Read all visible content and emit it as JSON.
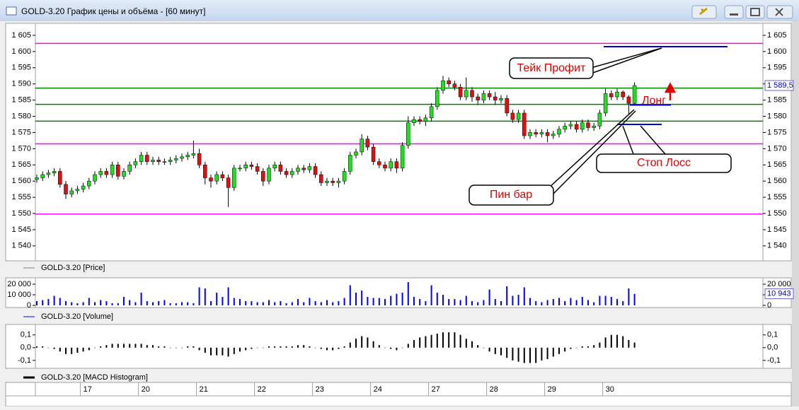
{
  "window": {
    "title": "GOLD-3.20 График цены и объёма - [60 минут]"
  },
  "chart_data": [
    {
      "type": "candlestick",
      "name": "GOLD-3.20 [Price]",
      "legend_color": "#808080",
      "up_color": "#22dd22",
      "down_color": "#dd1111",
      "categories": [
        null,
        null,
        null,
        null,
        null,
        null,
        null,
        null,
        "17",
        null,
        null,
        null,
        null,
        null,
        null,
        null,
        null,
        null,
        "20",
        null,
        null,
        null,
        null,
        null,
        null,
        null,
        null,
        null,
        "21",
        null,
        null,
        null,
        null,
        null,
        null,
        null,
        null,
        null,
        "22",
        null,
        null,
        null,
        null,
        null,
        null,
        null,
        null,
        null,
        "23",
        null,
        null,
        null,
        null,
        null,
        null,
        null,
        null,
        null,
        "24",
        null,
        null,
        null,
        null,
        null,
        null,
        null,
        null,
        null,
        "27",
        null,
        null,
        null,
        null,
        null,
        null,
        null,
        null,
        null,
        "28",
        null,
        null,
        null,
        null,
        null,
        null,
        null,
        null,
        null,
        "29",
        null,
        null,
        null,
        null,
        null,
        null,
        null,
        null,
        null,
        "30",
        null,
        null,
        null,
        null,
        null
      ],
      "open": [
        1560.5,
        1561,
        1562,
        1562.5,
        1563,
        1559,
        1556,
        1557,
        1557.5,
        1558.5,
        1560,
        1562,
        1563,
        1562,
        1565,
        1561.5,
        1563,
        1565,
        1566,
        1568,
        1566,
        1566.5,
        1566,
        1566,
        1566.5,
        1567,
        1567.5,
        1568,
        1568.5,
        1565,
        1561,
        1560,
        1562,
        1561,
        1558,
        1564,
        1564,
        1565,
        1564.5,
        1563,
        1560,
        1564,
        1565,
        1563,
        1562,
        1563,
        1564,
        1563.5,
        1564.5,
        1562,
        1559.5,
        1560,
        1559.5,
        1560,
        1563,
        1568,
        1569,
        1573,
        1570.5,
        1566,
        1565,
        1564,
        1566,
        1564,
        1571,
        1578,
        1579,
        1578.5,
        1579.5,
        1583,
        1588,
        1591,
        1590,
        1589,
        1586,
        1588,
        1586,
        1585,
        1587,
        1586,
        1585,
        1585.5,
        1581,
        1579,
        1581,
        1574,
        1575,
        1574.5,
        1575,
        1574,
        1574.5,
        1576,
        1577,
        1577.5,
        1576,
        1578,
        1576.5,
        1577,
        1581,
        1587,
        1586,
        1587.5,
        1586,
        1584
      ],
      "high": [
        1562,
        1563,
        1563.5,
        1564,
        1564,
        1560,
        1558,
        1558.5,
        1559.5,
        1561,
        1563,
        1564,
        1564,
        1566,
        1566,
        1564,
        1566,
        1567,
        1569,
        1569,
        1567.5,
        1567.5,
        1567,
        1567.5,
        1568,
        1568.5,
        1569,
        1572.5,
        1570,
        1566,
        1562,
        1563,
        1563,
        1562,
        1565,
        1565,
        1566,
        1566,
        1565.5,
        1564,
        1565,
        1566,
        1566,
        1564,
        1564,
        1565,
        1565,
        1565.5,
        1565.5,
        1563,
        1561,
        1561,
        1561,
        1564,
        1569,
        1570,
        1574.5,
        1574,
        1571.5,
        1567,
        1566,
        1567,
        1567,
        1572,
        1580,
        1580,
        1580,
        1580.5,
        1584,
        1589,
        1592.5,
        1592,
        1591,
        1590,
        1592,
        1589,
        1587,
        1588,
        1588,
        1587.5,
        1586.5,
        1586.5,
        1582,
        1582,
        1582,
        1576,
        1576,
        1576,
        1576,
        1575.5,
        1577,
        1578,
        1578.5,
        1578.5,
        1579,
        1579,
        1578,
        1582,
        1588.5,
        1588,
        1588.5,
        1588,
        1586.5,
        1590.5
      ],
      "low": [
        1559.5,
        1560,
        1561,
        1561.5,
        1558,
        1554.5,
        1555,
        1556,
        1556.5,
        1557.5,
        1559,
        1561,
        1561,
        1561,
        1560.5,
        1560.5,
        1562,
        1564,
        1565,
        1565,
        1565,
        1565,
        1565,
        1565,
        1565.5,
        1566,
        1566.5,
        1567,
        1564,
        1559,
        1558,
        1559,
        1560,
        1552,
        1557,
        1563,
        1563,
        1563.5,
        1562,
        1558.5,
        1559,
        1563,
        1562,
        1561,
        1561,
        1562,
        1562.5,
        1562.5,
        1561,
        1558.5,
        1558.5,
        1558.5,
        1558,
        1559,
        1562,
        1567,
        1568,
        1569.5,
        1565,
        1564,
        1563,
        1563,
        1562.5,
        1563,
        1570,
        1577,
        1577.5,
        1577,
        1578.5,
        1582,
        1587,
        1589,
        1588,
        1585,
        1585,
        1584.5,
        1583.5,
        1584,
        1585,
        1583.5,
        1584,
        1580,
        1578,
        1578,
        1573,
        1573,
        1573.5,
        1573.5,
        1572,
        1573,
        1573.5,
        1575,
        1576,
        1575,
        1575,
        1575.5,
        1575.5,
        1576,
        1580,
        1585,
        1585,
        1585,
        1580.5,
        1583.5
      ],
      "close": [
        1561,
        1562,
        1562.5,
        1563,
        1559,
        1556,
        1557,
        1557.5,
        1558.5,
        1560,
        1562,
        1563,
        1562,
        1565,
        1561.5,
        1563,
        1565,
        1566,
        1568,
        1566,
        1566.5,
        1566,
        1566,
        1566.5,
        1567,
        1567.5,
        1568,
        1568.5,
        1565,
        1561,
        1560,
        1562,
        1561,
        1558,
        1564,
        1564,
        1565,
        1564.5,
        1563,
        1560,
        1564,
        1565,
        1563,
        1562,
        1563,
        1564,
        1563.5,
        1564.5,
        1562,
        1559.5,
        1560,
        1559.5,
        1560,
        1563,
        1568,
        1569,
        1573,
        1570.5,
        1566,
        1565,
        1564,
        1566,
        1564,
        1571,
        1578,
        1579,
        1578.5,
        1579.5,
        1583,
        1588,
        1591,
        1590,
        1589,
        1586,
        1588,
        1586,
        1585,
        1587,
        1586,
        1585,
        1585.5,
        1581,
        1579,
        1581,
        1574,
        1575,
        1574.5,
        1575,
        1574,
        1574.5,
        1576,
        1577,
        1577.5,
        1576,
        1578,
        1576.5,
        1577,
        1581,
        1587,
        1586,
        1587.5,
        1586,
        1584,
        1589.5
      ],
      "last_label": "1 589,5",
      "ylim": [
        1535.6,
        1608.7
      ],
      "yticks": [
        {
          "value": 1540,
          "label": "1 540"
        },
        {
          "value": 1545,
          "label": "1 545"
        },
        {
          "value": 1550,
          "label": "1 550"
        },
        {
          "value": 1555,
          "label": "1 555"
        },
        {
          "value": 1560,
          "label": "1 560"
        },
        {
          "value": 1565,
          "label": "1 565"
        },
        {
          "value": 1570,
          "label": "1 570"
        },
        {
          "value": 1575,
          "label": "1 575"
        },
        {
          "value": 1580,
          "label": "1 580"
        },
        {
          "value": 1585,
          "label": "1 585"
        },
        {
          "value": 1590,
          "label": "1 590"
        },
        {
          "value": 1595,
          "label": "1 595"
        },
        {
          "value": 1600,
          "label": "1 600"
        },
        {
          "value": 1605,
          "label": "1 605"
        }
      ],
      "levels": [
        {
          "value": 1602.5,
          "color": "#ff00ff"
        },
        {
          "value": 1571.5,
          "color": "#ff00ff"
        },
        {
          "value": 1549.8,
          "color": "#ff00ff"
        },
        {
          "value": 1588.7,
          "color": "#008000"
        },
        {
          "value": 1583.7,
          "color": "#008000"
        },
        {
          "value": 1578.5,
          "color": "#008000"
        }
      ],
      "targets": [
        {
          "value": 1601.5,
          "color": "#0000cc"
        },
        {
          "value": 1583.5,
          "color": "#0000cc"
        },
        {
          "value": 1577.5,
          "color": "#0000cc"
        }
      ],
      "annotations": [
        "Тейк Профит",
        "Лонг",
        "Стоп Лосс",
        "Пин бар"
      ]
    },
    {
      "type": "bar",
      "name": "GOLD-3.20 [Volume]",
      "legend_color": "#0000ff",
      "color": "#0000ff",
      "values": [
        4000,
        5000,
        6000,
        9000,
        7000,
        4000,
        3000,
        2000,
        3000,
        7000,
        3000,
        5000,
        4000,
        2000,
        2000,
        8000,
        5000,
        3000,
        12000,
        4000,
        3000,
        4000,
        5000,
        2000,
        2000,
        3000,
        3000,
        2000,
        17000,
        16000,
        4000,
        12000,
        8000,
        17000,
        7000,
        6000,
        4000,
        4000,
        3000,
        3000,
        5000,
        3000,
        4000,
        2000,
        3000,
        6000,
        3000,
        7000,
        4000,
        3000,
        5000,
        3000,
        4000,
        7000,
        19000,
        12000,
        14000,
        8000,
        7000,
        7000,
        6000,
        9000,
        11000,
        12000,
        22000,
        8000,
        6000,
        4000,
        19000,
        12000,
        10000,
        6000,
        6000,
        5000,
        9000,
        4000,
        3000,
        5000,
        15000,
        6000,
        4000,
        18000,
        9000,
        10000,
        17000,
        7000,
        4000,
        3000,
        5000,
        6000,
        7000,
        4000,
        7000,
        5000,
        8000,
        5000,
        3000,
        9000,
        9000,
        8000,
        6000,
        4000,
        16000,
        10943
      ],
      "last_label": "10 943",
      "ylim": [
        0,
        24700
      ],
      "yticks": [
        0,
        {
          "value": 10000,
          "label": "10 000"
        },
        {
          "value": 20000,
          "label": "20 000"
        }
      ]
    },
    {
      "type": "bar",
      "name": "GOLD-3.20 [MACD Histogram]",
      "legend_color": "#000000",
      "color": "#000000",
      "values": [
        0.01,
        0.01,
        0.0,
        -0.01,
        -0.03,
        -0.05,
        -0.05,
        -0.04,
        -0.03,
        -0.02,
        0.0,
        0.01,
        0.02,
        0.03,
        0.03,
        0.03,
        0.03,
        0.03,
        0.03,
        0.02,
        0.02,
        0.01,
        0.01,
        0.0,
        0.0,
        0.0,
        0.01,
        0.01,
        -0.02,
        -0.04,
        -0.06,
        -0.06,
        -0.06,
        -0.07,
        -0.05,
        -0.03,
        -0.02,
        -0.01,
        0.0,
        0.0,
        0.01,
        0.01,
        0.01,
        0.01,
        0.01,
        0.02,
        0.02,
        0.01,
        0.0,
        -0.01,
        -0.02,
        -0.02,
        -0.01,
        0.01,
        0.04,
        0.07,
        0.09,
        0.08,
        0.05,
        0.02,
        0.0,
        -0.01,
        -0.02,
        0.0,
        0.03,
        0.06,
        0.08,
        0.09,
        0.1,
        0.11,
        0.12,
        0.12,
        0.12,
        0.1,
        0.07,
        0.05,
        0.02,
        0.0,
        -0.03,
        -0.05,
        -0.06,
        -0.08,
        -0.1,
        -0.11,
        -0.12,
        -0.12,
        -0.12,
        -0.1,
        -0.09,
        -0.07,
        -0.05,
        -0.03,
        -0.01,
        0.0,
        0.01,
        0.01,
        0.02,
        0.04,
        0.08,
        0.1,
        0.1,
        0.09,
        0.06,
        0.04
      ],
      "ylim": [
        -0.145,
        0.165
      ],
      "yticks": [
        {
          "value": -0.1,
          "label": "-0,1"
        },
        {
          "value": 0,
          "label": "0,0"
        },
        {
          "value": 0.1,
          "label": "0,1"
        }
      ]
    }
  ]
}
